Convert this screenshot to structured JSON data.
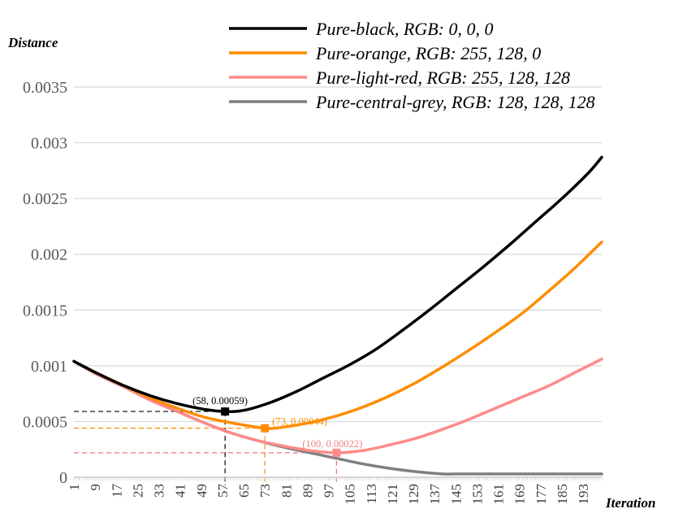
{
  "chart_data": {
    "type": "line",
    "xlabel": "Iteration",
    "ylabel": "Distance",
    "xlim": [
      1,
      200
    ],
    "ylim": [
      0,
      0.0035
    ],
    "yticks": [
      0,
      0.0005,
      0.001,
      0.0015,
      0.002,
      0.0025,
      0.003,
      0.0035
    ],
    "ytick_labels": [
      "0",
      "0.0005",
      "0.001",
      "0.0015",
      "0.002",
      "0.0025",
      "0.003",
      "0.0035"
    ],
    "xtick_labels": [
      "1",
      "9",
      "17",
      "25",
      "33",
      "41",
      "49",
      "57",
      "65",
      "73",
      "81",
      "89",
      "97",
      "105",
      "113",
      "121",
      "129",
      "137",
      "145",
      "153",
      "161",
      "169",
      "177",
      "185",
      "193"
    ],
    "xtick_values": [
      1,
      9,
      17,
      25,
      33,
      41,
      49,
      57,
      65,
      73,
      81,
      89,
      97,
      105,
      113,
      121,
      129,
      137,
      145,
      153,
      161,
      169,
      177,
      185,
      193
    ],
    "grid": "horizontal",
    "legend_position": "top-right",
    "series": [
      {
        "name": "Pure-black, RGB: 0, 0, 0",
        "color": "#000000",
        "x": [
          1,
          10,
          20,
          30,
          40,
          50,
          58,
          65,
          75,
          85,
          95,
          105,
          115,
          125,
          135,
          145,
          155,
          165,
          175,
          185,
          195,
          200
        ],
        "y": [
          0.00104,
          0.00093,
          0.00082,
          0.00073,
          0.00066,
          0.00061,
          0.00059,
          0.0006,
          0.00067,
          0.00077,
          0.00089,
          0.00101,
          0.00115,
          0.00132,
          0.0015,
          0.00169,
          0.00188,
          0.00208,
          0.00229,
          0.0025,
          0.00273,
          0.00287
        ]
      },
      {
        "name": "Pure-orange, RGB: 255, 128, 0",
        "color": "#FF8C00",
        "x": [
          1,
          10,
          20,
          30,
          40,
          50,
          60,
          73,
          80,
          90,
          100,
          110,
          120,
          130,
          140,
          150,
          160,
          170,
          180,
          190,
          200
        ],
        "y": [
          0.00104,
          0.00093,
          0.00082,
          0.00071,
          0.00062,
          0.00054,
          0.00049,
          0.00044,
          0.00045,
          0.00049,
          0.00055,
          0.00063,
          0.00073,
          0.00085,
          0.00099,
          0.00114,
          0.0013,
          0.00147,
          0.00167,
          0.00188,
          0.00211
        ]
      },
      {
        "name": "Pure-light-red, RGB: 255, 128, 128",
        "color": "#FF8A8A",
        "x": [
          1,
          10,
          20,
          30,
          40,
          50,
          60,
          70,
          80,
          90,
          100,
          110,
          120,
          130,
          140,
          150,
          160,
          170,
          180,
          190,
          200
        ],
        "y": [
          0.00104,
          0.00092,
          0.00081,
          0.00069,
          0.00059,
          0.00049,
          0.0004,
          0.00033,
          0.00028,
          0.00024,
          0.00022,
          0.00024,
          0.00029,
          0.00035,
          0.00043,
          0.00052,
          0.00062,
          0.00072,
          0.00082,
          0.00094,
          0.00106
        ]
      },
      {
        "name": "Pure-central-grey, RGB: 128, 128, 128",
        "color": "#7F7F7F",
        "x": [
          1,
          10,
          20,
          30,
          40,
          50,
          60,
          70,
          80,
          90,
          100,
          110,
          120,
          130,
          140,
          145,
          150,
          160,
          170,
          180,
          190,
          200
        ],
        "y": [
          0.00104,
          0.00092,
          0.00081,
          0.00069,
          0.00059,
          0.00049,
          0.0004,
          0.00033,
          0.00027,
          0.00022,
          0.00017,
          0.00012,
          8e-05,
          5e-05,
          3e-05,
          3e-05,
          3e-05,
          3e-05,
          3e-05,
          3e-05,
          3e-05,
          3e-05
        ]
      }
    ],
    "annotations": [
      {
        "text": "(58, 0.00059)",
        "x": 58,
        "y": 0.00059,
        "color": "#000000",
        "marker_color": "#000000",
        "guide_color": "#000000"
      },
      {
        "text": "(73, 0.00044)",
        "x": 73,
        "y": 0.00044,
        "color": "#FF8C00",
        "marker_color": "#FF8C00",
        "guide_color": "#FF8C00"
      },
      {
        "text": "(100, 0.00022)",
        "x": 100,
        "y": 0.00022,
        "color": "#F08080",
        "marker_color": "#FF8A8A",
        "guide_color": "#F26B6B"
      }
    ]
  }
}
